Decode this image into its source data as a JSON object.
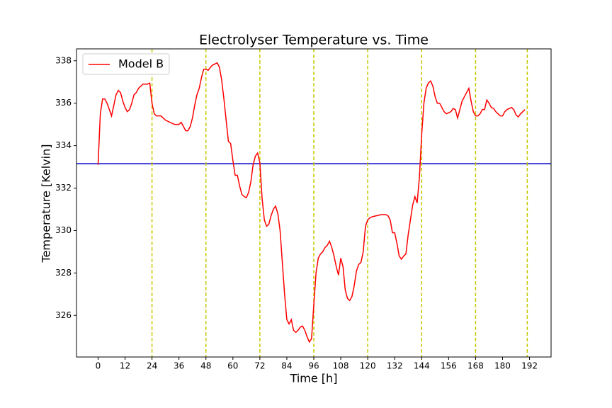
{
  "chart_data": {
    "type": "line",
    "title": "Electrolyser Temperature vs. Time",
    "xlabel": "Time [h]",
    "ylabel": "Temperature [Kelvin]",
    "xlim": [
      -9.6,
      201.6
    ],
    "ylim": [
      324.04,
      338.56
    ],
    "xticks": [
      0,
      12,
      24,
      36,
      48,
      60,
      72,
      84,
      96,
      108,
      120,
      132,
      144,
      156,
      168,
      180,
      192
    ],
    "yticks": [
      326,
      328,
      330,
      332,
      334,
      336,
      338
    ],
    "legend": "upper left",
    "hline": {
      "value": 333.15,
      "color": "#0000cc"
    },
    "vlines": {
      "values": [
        24,
        48,
        72,
        96,
        120,
        144,
        168,
        191
      ],
      "color": "#c8c800"
    },
    "x": [
      0,
      1,
      2,
      3,
      4,
      5,
      6,
      7,
      8,
      9,
      10,
      11,
      12,
      13,
      14,
      15,
      16,
      17,
      18,
      19,
      20,
      21,
      22,
      23,
      24,
      25,
      26,
      28,
      30,
      32,
      34,
      36,
      37,
      38,
      39,
      40,
      41,
      42,
      43,
      44,
      45,
      46,
      47,
      48,
      49,
      50,
      51,
      52,
      53,
      54,
      55,
      56,
      57,
      58,
      59,
      60,
      61,
      62,
      63,
      64,
      65,
      66,
      67,
      68,
      69,
      70,
      71,
      72,
      73,
      74,
      75,
      76,
      77,
      78,
      79,
      80,
      81,
      82,
      83,
      84,
      85,
      86,
      87,
      88,
      89,
      90,
      91,
      92,
      93,
      94,
      95,
      96,
      97,
      98,
      99,
      100,
      101,
      102,
      103,
      104,
      105,
      106,
      107,
      108,
      109,
      110,
      111,
      112,
      113,
      114,
      115,
      116,
      117,
      118,
      119,
      120,
      121,
      122,
      124,
      126,
      128,
      129,
      130,
      131,
      132,
      133,
      134,
      135,
      136,
      137,
      138,
      139,
      140,
      141,
      142,
      143,
      144,
      145,
      146,
      147,
      148,
      149,
      150,
      151,
      152,
      153,
      154,
      155,
      156,
      157,
      158,
      159,
      160,
      161,
      162,
      163,
      164,
      165,
      166,
      167,
      168,
      169,
      170,
      171,
      172,
      173,
      174,
      175,
      176,
      177,
      178,
      179,
      180,
      181,
      182,
      183,
      184,
      185,
      186,
      187,
      188,
      189,
      190
    ],
    "series": [
      {
        "name": "Model B",
        "color": "#ff0000",
        "values": [
          333.1,
          335.5,
          336.2,
          336.2,
          336.0,
          335.7,
          335.4,
          335.9,
          336.4,
          336.6,
          336.5,
          336.1,
          335.8,
          335.6,
          335.7,
          336.0,
          336.4,
          336.5,
          336.7,
          336.8,
          336.9,
          336.9,
          336.9,
          336.95,
          336.0,
          335.5,
          335.4,
          335.4,
          335.2,
          335.1,
          335.0,
          335.0,
          335.1,
          334.9,
          334.7,
          334.7,
          334.9,
          335.3,
          335.9,
          336.4,
          336.7,
          337.2,
          337.6,
          337.6,
          337.55,
          337.7,
          337.8,
          337.85,
          337.9,
          337.7,
          337.1,
          336.2,
          335.2,
          334.2,
          334.1,
          333.3,
          332.6,
          332.6,
          332.1,
          331.7,
          331.6,
          331.55,
          331.8,
          332.3,
          333.1,
          333.5,
          333.65,
          333.2,
          331.5,
          330.5,
          330.2,
          330.3,
          330.7,
          331.0,
          331.15,
          330.8,
          330.0,
          328.5,
          327.0,
          325.8,
          325.6,
          325.8,
          325.3,
          325.2,
          325.3,
          325.45,
          325.5,
          325.3,
          325.0,
          324.75,
          324.9,
          326.5,
          328.0,
          328.7,
          328.9,
          329.0,
          329.2,
          329.3,
          329.5,
          329.2,
          328.8,
          328.3,
          327.9,
          328.7,
          328.3,
          327.2,
          326.8,
          326.7,
          326.9,
          327.4,
          328.1,
          328.4,
          328.5,
          329.0,
          330.2,
          330.5,
          330.6,
          330.65,
          330.7,
          330.75,
          330.75,
          330.7,
          330.5,
          329.9,
          329.9,
          329.4,
          328.8,
          328.65,
          328.8,
          328.9,
          329.8,
          330.5,
          331.2,
          331.6,
          331.3,
          332.5,
          334.5,
          336.0,
          336.7,
          336.95,
          337.05,
          336.8,
          336.3,
          336.0,
          336.0,
          335.8,
          335.6,
          335.5,
          335.55,
          335.6,
          335.75,
          335.7,
          335.3,
          335.7,
          336.1,
          336.3,
          336.5,
          336.7,
          336.1,
          335.6,
          335.4,
          335.4,
          335.5,
          335.7,
          335.7,
          336.15,
          336.0,
          335.8,
          335.75,
          335.6,
          335.5,
          335.4,
          335.4,
          335.6,
          335.7,
          335.75,
          335.8,
          335.7,
          335.45,
          335.35,
          335.5,
          335.6,
          335.7
        ]
      }
    ]
  }
}
